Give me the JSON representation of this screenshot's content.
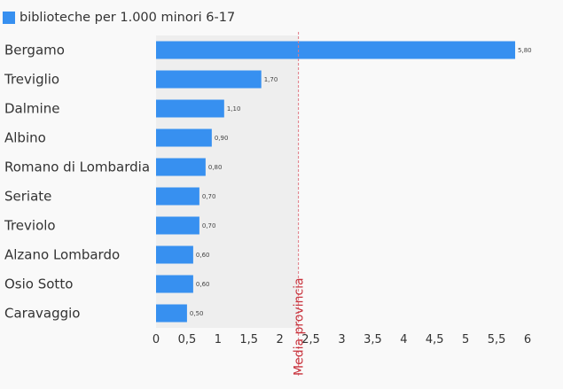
{
  "chart_data": {
    "type": "bar",
    "orientation": "horizontal",
    "categories": [
      "Bergamo",
      "Treviglio",
      "Dalmine",
      "Albino",
      "Romano di Lombardia",
      "Seriate",
      "Treviolo",
      "Alzano Lombardo",
      "Osio Sotto",
      "Caravaggio"
    ],
    "series": [
      {
        "name": "biblioteche per 1.000 minori 6-17",
        "values": [
          5.8,
          1.7,
          1.1,
          0.9,
          0.8,
          0.7,
          0.7,
          0.6,
          0.6,
          0.5
        ],
        "value_labels": [
          "5,80",
          "1,70",
          "1,10",
          "0,90",
          "0,80",
          "0,70",
          "0,70",
          "0,60",
          "0,60",
          "0,50"
        ],
        "color": "#3790f0"
      }
    ],
    "xlim": [
      0,
      6
    ],
    "x_ticks": [
      0,
      0.5,
      1,
      1.5,
      2,
      2.5,
      3,
      3.5,
      4,
      4.5,
      5,
      5.5,
      6
    ],
    "x_tick_labels": [
      "0",
      "0,5",
      "1",
      "1,5",
      "2",
      "2,5",
      "3",
      "3,5",
      "4",
      "4,5",
      "5",
      "5,5",
      "6"
    ],
    "reference_line": {
      "value": 2.3,
      "label": "Media provincia",
      "color": "#e07a85"
    },
    "shaded_band": {
      "from": 0,
      "to": 2.3,
      "color": "#eeeeee"
    },
    "legend_position": "top-left",
    "grid": false
  }
}
